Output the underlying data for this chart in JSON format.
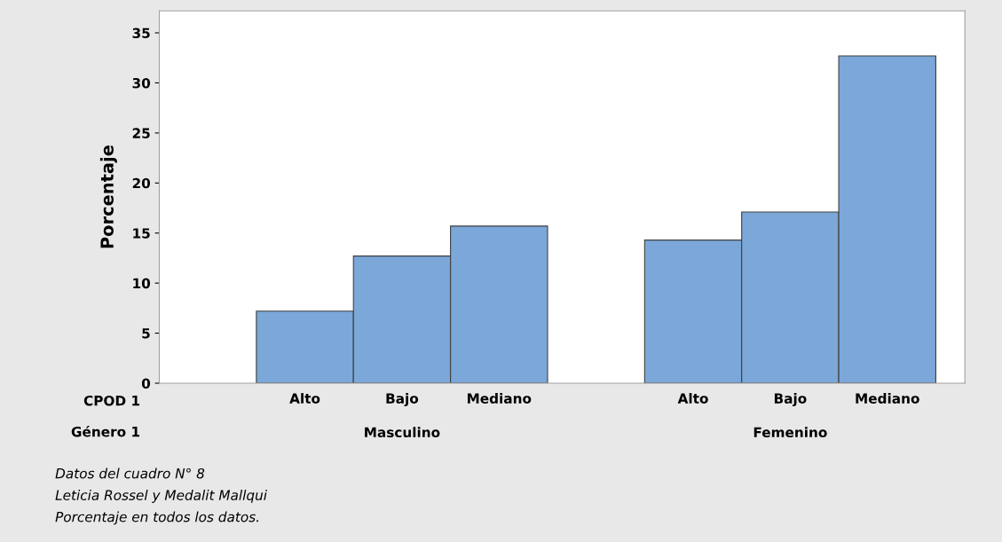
{
  "chart_data": {
    "type": "bar",
    "ylabel": "Porcentaje",
    "categories": [
      "Alto",
      "Bajo",
      "Mediano",
      null,
      "Alto",
      "Bajo",
      "Mediano"
    ],
    "values": [
      7.2,
      12.7,
      15.7,
      null,
      14.3,
      17.1,
      32.7
    ],
    "color": "#7ba7d9",
    "ylim": [
      0,
      37.2
    ],
    "yticks": [
      0,
      5,
      10,
      15,
      20,
      25,
      30,
      35
    ],
    "grid": false,
    "annotations": [
      "CPOD 1",
      "Género 1",
      "Masculino",
      "Femenino",
      "Datos del cuadro N° 8",
      "Leticia Rossel y Medalit Mallqui",
      "Porcentaje en todos los datos."
    ]
  }
}
